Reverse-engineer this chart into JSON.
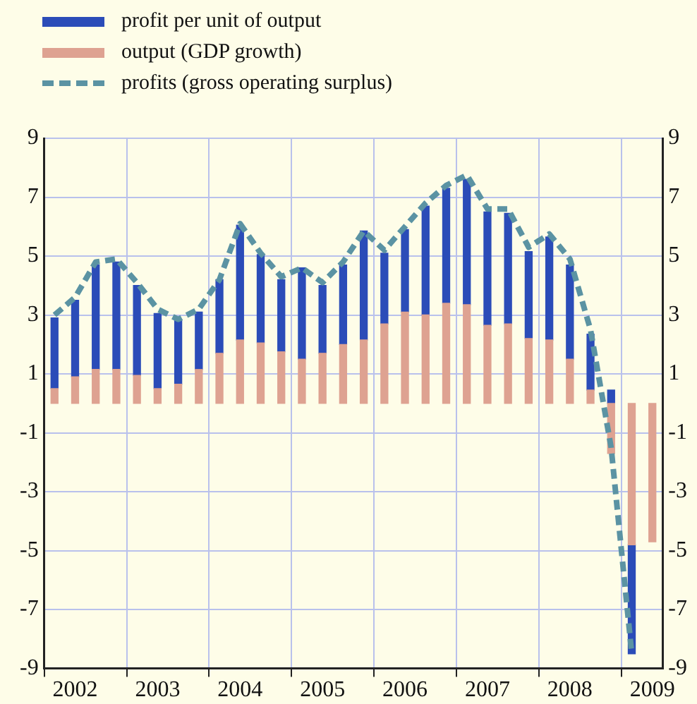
{
  "chart_data": {
    "type": "bar",
    "stacked": true,
    "categories": [
      null,
      "2002",
      null,
      null,
      null,
      "2003",
      null,
      null,
      null,
      "2004",
      null,
      null,
      null,
      "2005",
      null,
      null,
      null,
      "2006",
      null,
      null,
      null,
      "2007",
      null,
      null,
      null,
      "2008",
      null,
      null,
      null,
      "2009"
    ],
    "series": [
      {
        "name": "output (GDP growth)",
        "color": "#dea291",
        "values": [
          0.5,
          0.9,
          1.15,
          1.15,
          0.95,
          0.5,
          0.65,
          1.15,
          1.7,
          2.15,
          2.05,
          1.75,
          1.5,
          1.7,
          2.0,
          2.15,
          2.7,
          3.1,
          3.0,
          3.4,
          3.35,
          2.65,
          2.7,
          2.2,
          2.15,
          1.5,
          0.45,
          -1.7,
          -4.8,
          -4.7
        ]
      },
      {
        "name": "profit per unit of output",
        "color": "#2b4cb8",
        "values": [
          2.4,
          2.6,
          3.55,
          3.65,
          3.05,
          2.55,
          2.2,
          1.95,
          2.5,
          3.9,
          3.0,
          2.45,
          3.1,
          2.3,
          2.7,
          3.7,
          2.4,
          2.8,
          3.7,
          3.9,
          4.25,
          3.85,
          3.75,
          2.95,
          3.5,
          3.2,
          1.9,
          0.45,
          -3.7,
          null
        ]
      },
      {
        "name": "profits (gross operating surplus)",
        "type": "line",
        "color": "#5b93a3",
        "line_style": "dashed",
        "marker": "none",
        "values": [
          3.0,
          3.6,
          4.8,
          4.9,
          4.1,
          3.2,
          2.85,
          3.2,
          4.2,
          6.1,
          5.1,
          4.3,
          4.6,
          4.1,
          4.8,
          5.85,
          5.2,
          6.0,
          6.8,
          7.4,
          7.75,
          6.6,
          6.6,
          5.3,
          5.75,
          4.9,
          2.5,
          -1.5,
          -8.5,
          null
        ]
      }
    ],
    "ylim": [
      -9,
      9
    ],
    "yticks": [
      -9,
      -7,
      -5,
      -3,
      -1,
      1,
      3,
      5,
      7,
      9
    ],
    "y2lim": [
      -9,
      9
    ],
    "y2ticks": [
      -9,
      -7,
      -5,
      -3,
      -1,
      1,
      3,
      5,
      7,
      9
    ],
    "grid": true,
    "legend": "top left"
  }
}
